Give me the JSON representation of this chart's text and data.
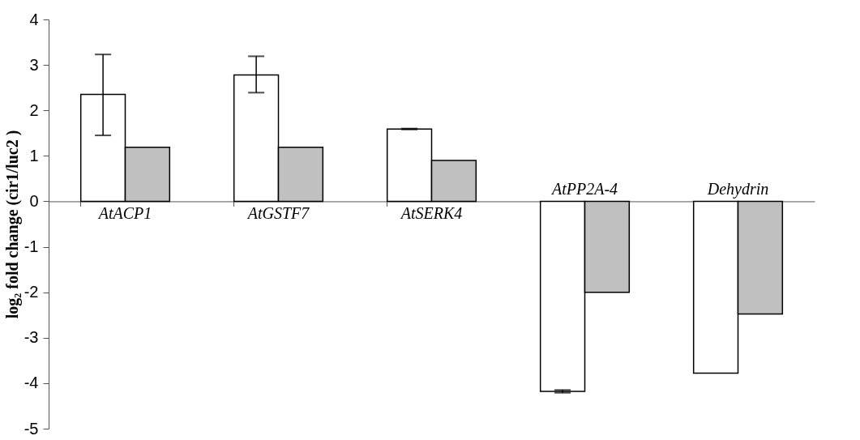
{
  "chart_data": {
    "type": "bar",
    "ylabel": "log₂ fold change (cir1/luc2 )",
    "categories": [
      "AtACP1",
      "AtGSTF7",
      "AtSERK4",
      "AtPP2A-4",
      "Dehydrin"
    ],
    "series": [
      {
        "color": "#ffffff",
        "values": [
          2.35,
          2.78,
          1.59,
          -4.18,
          -3.78
        ],
        "errors": [
          [
            1.45,
            3.23
          ],
          [
            2.39,
            3.19
          ],
          0.01,
          0.03,
          null
        ]
      },
      {
        "color": "#c0c0c0",
        "values": [
          1.19,
          1.19,
          0.9,
          -2.0,
          -2.48
        ]
      }
    ],
    "ylim": [
      -5,
      4
    ],
    "yticks": [
      -5,
      -4,
      -3,
      -2,
      -1,
      0,
      1,
      2,
      3,
      4
    ],
    "grid": false,
    "legend": false
  }
}
